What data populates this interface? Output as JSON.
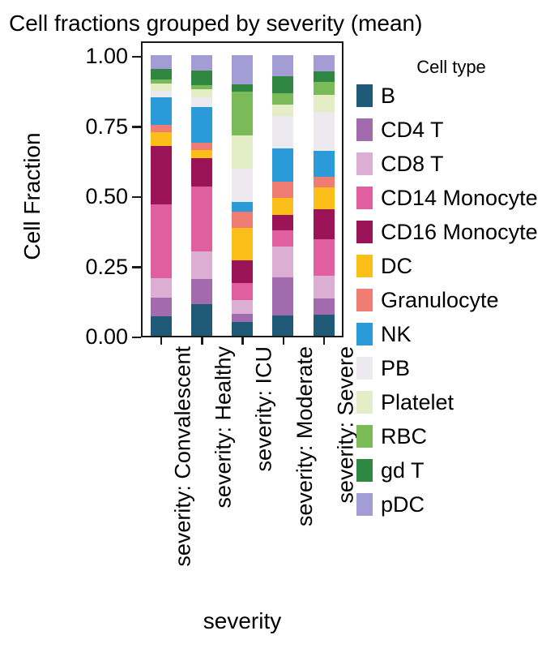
{
  "chart_data": {
    "type": "bar",
    "variant": "stacked-vertical",
    "title": "Cell fractions grouped by severity (mean)",
    "xlabel": "severity",
    "ylabel": "Cell Fraction",
    "ylim": [
      0.0,
      1.0
    ],
    "grid": false,
    "yticks": [
      {
        "label": "0.00",
        "value": 0.0
      },
      {
        "label": "0.25",
        "value": 0.25
      },
      {
        "label": "0.50",
        "value": 0.5
      },
      {
        "label": "0.75",
        "value": 0.75
      },
      {
        "label": "1.00",
        "value": 1.0
      }
    ],
    "categories": [
      "severity: Convalescent",
      "severity: Healthy",
      "severity: ICU",
      "severity: Moderate",
      "severity: Severe"
    ],
    "legend_title": "Cell type",
    "legend_position": "right",
    "series": [
      {
        "name": "B",
        "color": "#1f5b78",
        "values": [
          0.07,
          0.113,
          0.048,
          0.072,
          0.076
        ]
      },
      {
        "name": "CD4 T",
        "color": "#a16bad",
        "values": [
          0.067,
          0.088,
          0.029,
          0.134,
          0.056
        ]
      },
      {
        "name": "CD8 T",
        "color": "#dcaed3",
        "values": [
          0.067,
          0.099,
          0.051,
          0.11,
          0.081
        ]
      },
      {
        "name": "CD14 Monocyte",
        "color": "#e0609f",
        "values": [
          0.263,
          0.23,
          0.06,
          0.057,
          0.128
        ]
      },
      {
        "name": "CD16 Monocyte",
        "color": "#9b1458",
        "values": [
          0.209,
          0.103,
          0.081,
          0.056,
          0.107
        ]
      },
      {
        "name": "DC",
        "color": "#fcbe18",
        "values": [
          0.048,
          0.029,
          0.115,
          0.06,
          0.077
        ]
      },
      {
        "name": "Granulocyte",
        "color": "#ef7d74",
        "values": [
          0.027,
          0.025,
          0.058,
          0.058,
          0.04
        ]
      },
      {
        "name": "NK",
        "color": "#2b9ad9",
        "values": [
          0.096,
          0.128,
          0.035,
          0.117,
          0.092
        ]
      },
      {
        "name": "PB",
        "color": "#edeaef",
        "values": [
          0.024,
          0.032,
          0.117,
          0.115,
          0.138
        ]
      },
      {
        "name": "Platelet",
        "color": "#e4edc6",
        "values": [
          0.027,
          0.029,
          0.12,
          0.041,
          0.058
        ]
      },
      {
        "name": "RBC",
        "color": "#7aba58",
        "values": [
          0.014,
          0.016,
          0.155,
          0.042,
          0.046
        ]
      },
      {
        "name": "gd T",
        "color": "#2f8741",
        "values": [
          0.036,
          0.051,
          0.027,
          0.06,
          0.04
        ]
      },
      {
        "name": "pDC",
        "color": "#a49cd4",
        "values": [
          0.05,
          0.055,
          0.103,
          0.074,
          0.056
        ]
      }
    ]
  }
}
